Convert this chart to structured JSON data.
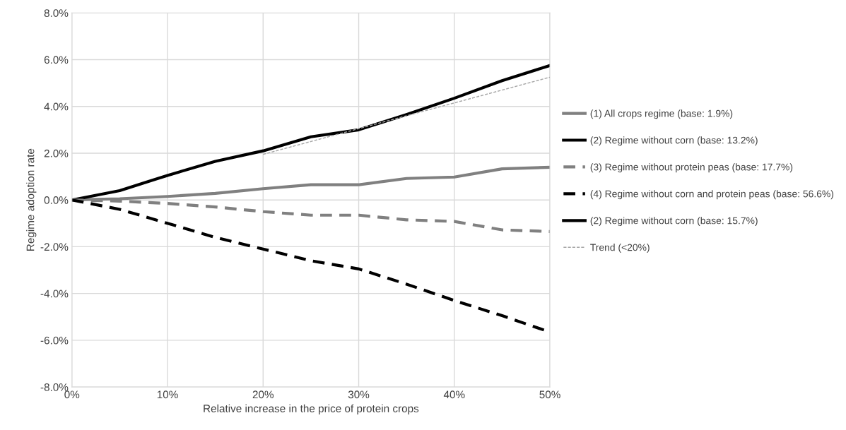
{
  "chart_data": {
    "type": "line",
    "xlabel": "Relative increase in the price of protein crops",
    "ylabel": "Regime adoption rate",
    "x": [
      0,
      5,
      10,
      15,
      20,
      25,
      30,
      35,
      40,
      45,
      50
    ],
    "series": [
      {
        "name": "(1) All crops regime (base: 1.9%)",
        "color": "#808080",
        "line_style": "solid",
        "values": [
          0,
          0.05,
          0.15,
          0.28,
          0.48,
          0.65,
          0.65,
          0.92,
          0.98,
          1.33,
          1.4
        ]
      },
      {
        "name": "(2) Regime without corn (base: 13.2%)",
        "color": "#000000",
        "line_style": "solid",
        "values": [
          0,
          0.4,
          1.05,
          1.65,
          2.1,
          2.7,
          3.0,
          3.65,
          4.35,
          5.1,
          5.75
        ]
      },
      {
        "name": "(3) Regime without protein peas (base: 17.7%)",
        "color": "#808080",
        "line_style": "dashed",
        "values": [
          0,
          -0.05,
          -0.15,
          -0.3,
          -0.5,
          -0.65,
          -0.65,
          -0.85,
          -0.92,
          -1.28,
          -1.35
        ]
      },
      {
        "name": "(4) Regime without corn and protein peas (base: 56.6%)",
        "color": "#000000",
        "line_style": "dashed",
        "values": [
          0,
          -0.4,
          -1.0,
          -1.6,
          -2.1,
          -2.6,
          -2.95,
          -3.6,
          -4.3,
          -4.95,
          -5.65
        ]
      },
      {
        "name": "(2) Regime without corn (base: 15.7%)",
        "color": "#000000",
        "line_style": "solid",
        "values": [
          null,
          null,
          null,
          null,
          null,
          null,
          null,
          null,
          null,
          null,
          null
        ]
      },
      {
        "name": "Trend (<20%)",
        "color": "#a6a6a6",
        "line_style": "dashed",
        "x": [
          20,
          50
        ],
        "values": [
          1.95,
          5.25
        ]
      }
    ],
    "xlim": [
      0,
      50
    ],
    "xticks": [
      {
        "value": 0,
        "label": "0%"
      },
      {
        "value": 10,
        "label": "10%"
      },
      {
        "value": 20,
        "label": "20%"
      },
      {
        "value": 30,
        "label": "30%"
      },
      {
        "value": 40,
        "label": "40%"
      },
      {
        "value": 50,
        "label": "50%"
      }
    ],
    "ylim": [
      -8,
      8
    ],
    "yticks": [
      {
        "value": -8,
        "label": "-8.0%"
      },
      {
        "value": -6,
        "label": "-6.0%"
      },
      {
        "value": -4,
        "label": "-4.0%"
      },
      {
        "value": -2,
        "label": "-2.0%"
      },
      {
        "value": 0,
        "label": "0.0%"
      },
      {
        "value": 2,
        "label": "2.0%"
      },
      {
        "value": 4,
        "label": "4.0%"
      },
      {
        "value": 6,
        "label": "6.0%"
      },
      {
        "value": 8,
        "label": "8.0%"
      }
    ],
    "grid": true,
    "legend": "right",
    "marker": "none"
  }
}
